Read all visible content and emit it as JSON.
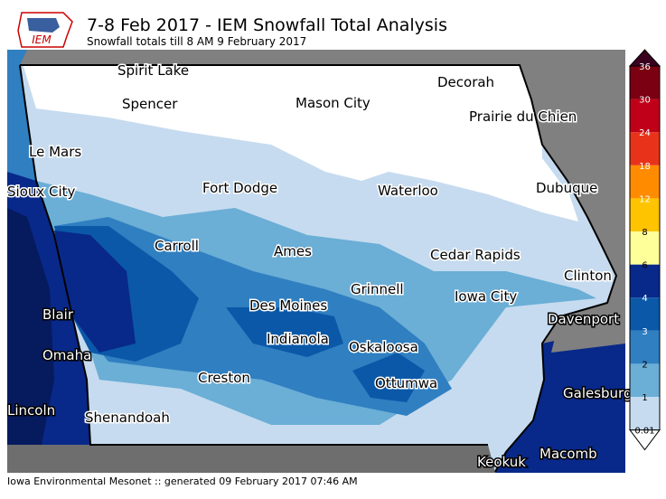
{
  "header": {
    "logo": "IEM",
    "title": "7-8 Feb 2017 - IEM Snowfall Total Analysis",
    "subtitle": "Snowfall totals till 8 AM 9 February 2017"
  },
  "map": {
    "cities": [
      "Spirit Lake",
      "Decorah",
      "Spencer",
      "Mason City",
      "Prairie du Chien",
      "Le Mars",
      "Sioux City",
      "Fort Dodge",
      "Waterloo",
      "Dubuque",
      "Carroll",
      "Ames",
      "Cedar Rapids",
      "Clinton",
      "Grinnell",
      "Iowa City",
      "Des Moines",
      "Blair",
      "Davenport",
      "Indianola",
      "Oskaloosa",
      "Omaha",
      "Creston",
      "Ottumwa",
      "Galesburg",
      "Lincoln",
      "Shenandoah",
      "Macomb",
      "Keokuk"
    ]
  },
  "legend": {
    "levels": [
      "0.01",
      "1",
      "2",
      "3",
      "4",
      "6",
      "8",
      "12",
      "18",
      "24",
      "30",
      "36"
    ],
    "colors": [
      "#c6dbef",
      "#6baed6",
      "#2f7fc1",
      "#0b58a8",
      "#08298a",
      "#ffff99",
      "#ffc400",
      "#ff8c00",
      "#e8331a",
      "#c00018",
      "#7a0012"
    ],
    "under_color": "#ffffff",
    "over_color": "#3a0020"
  },
  "footer": "Iowa Environmental Mesonet :: generated 09 February 2017 07:46 AM"
}
